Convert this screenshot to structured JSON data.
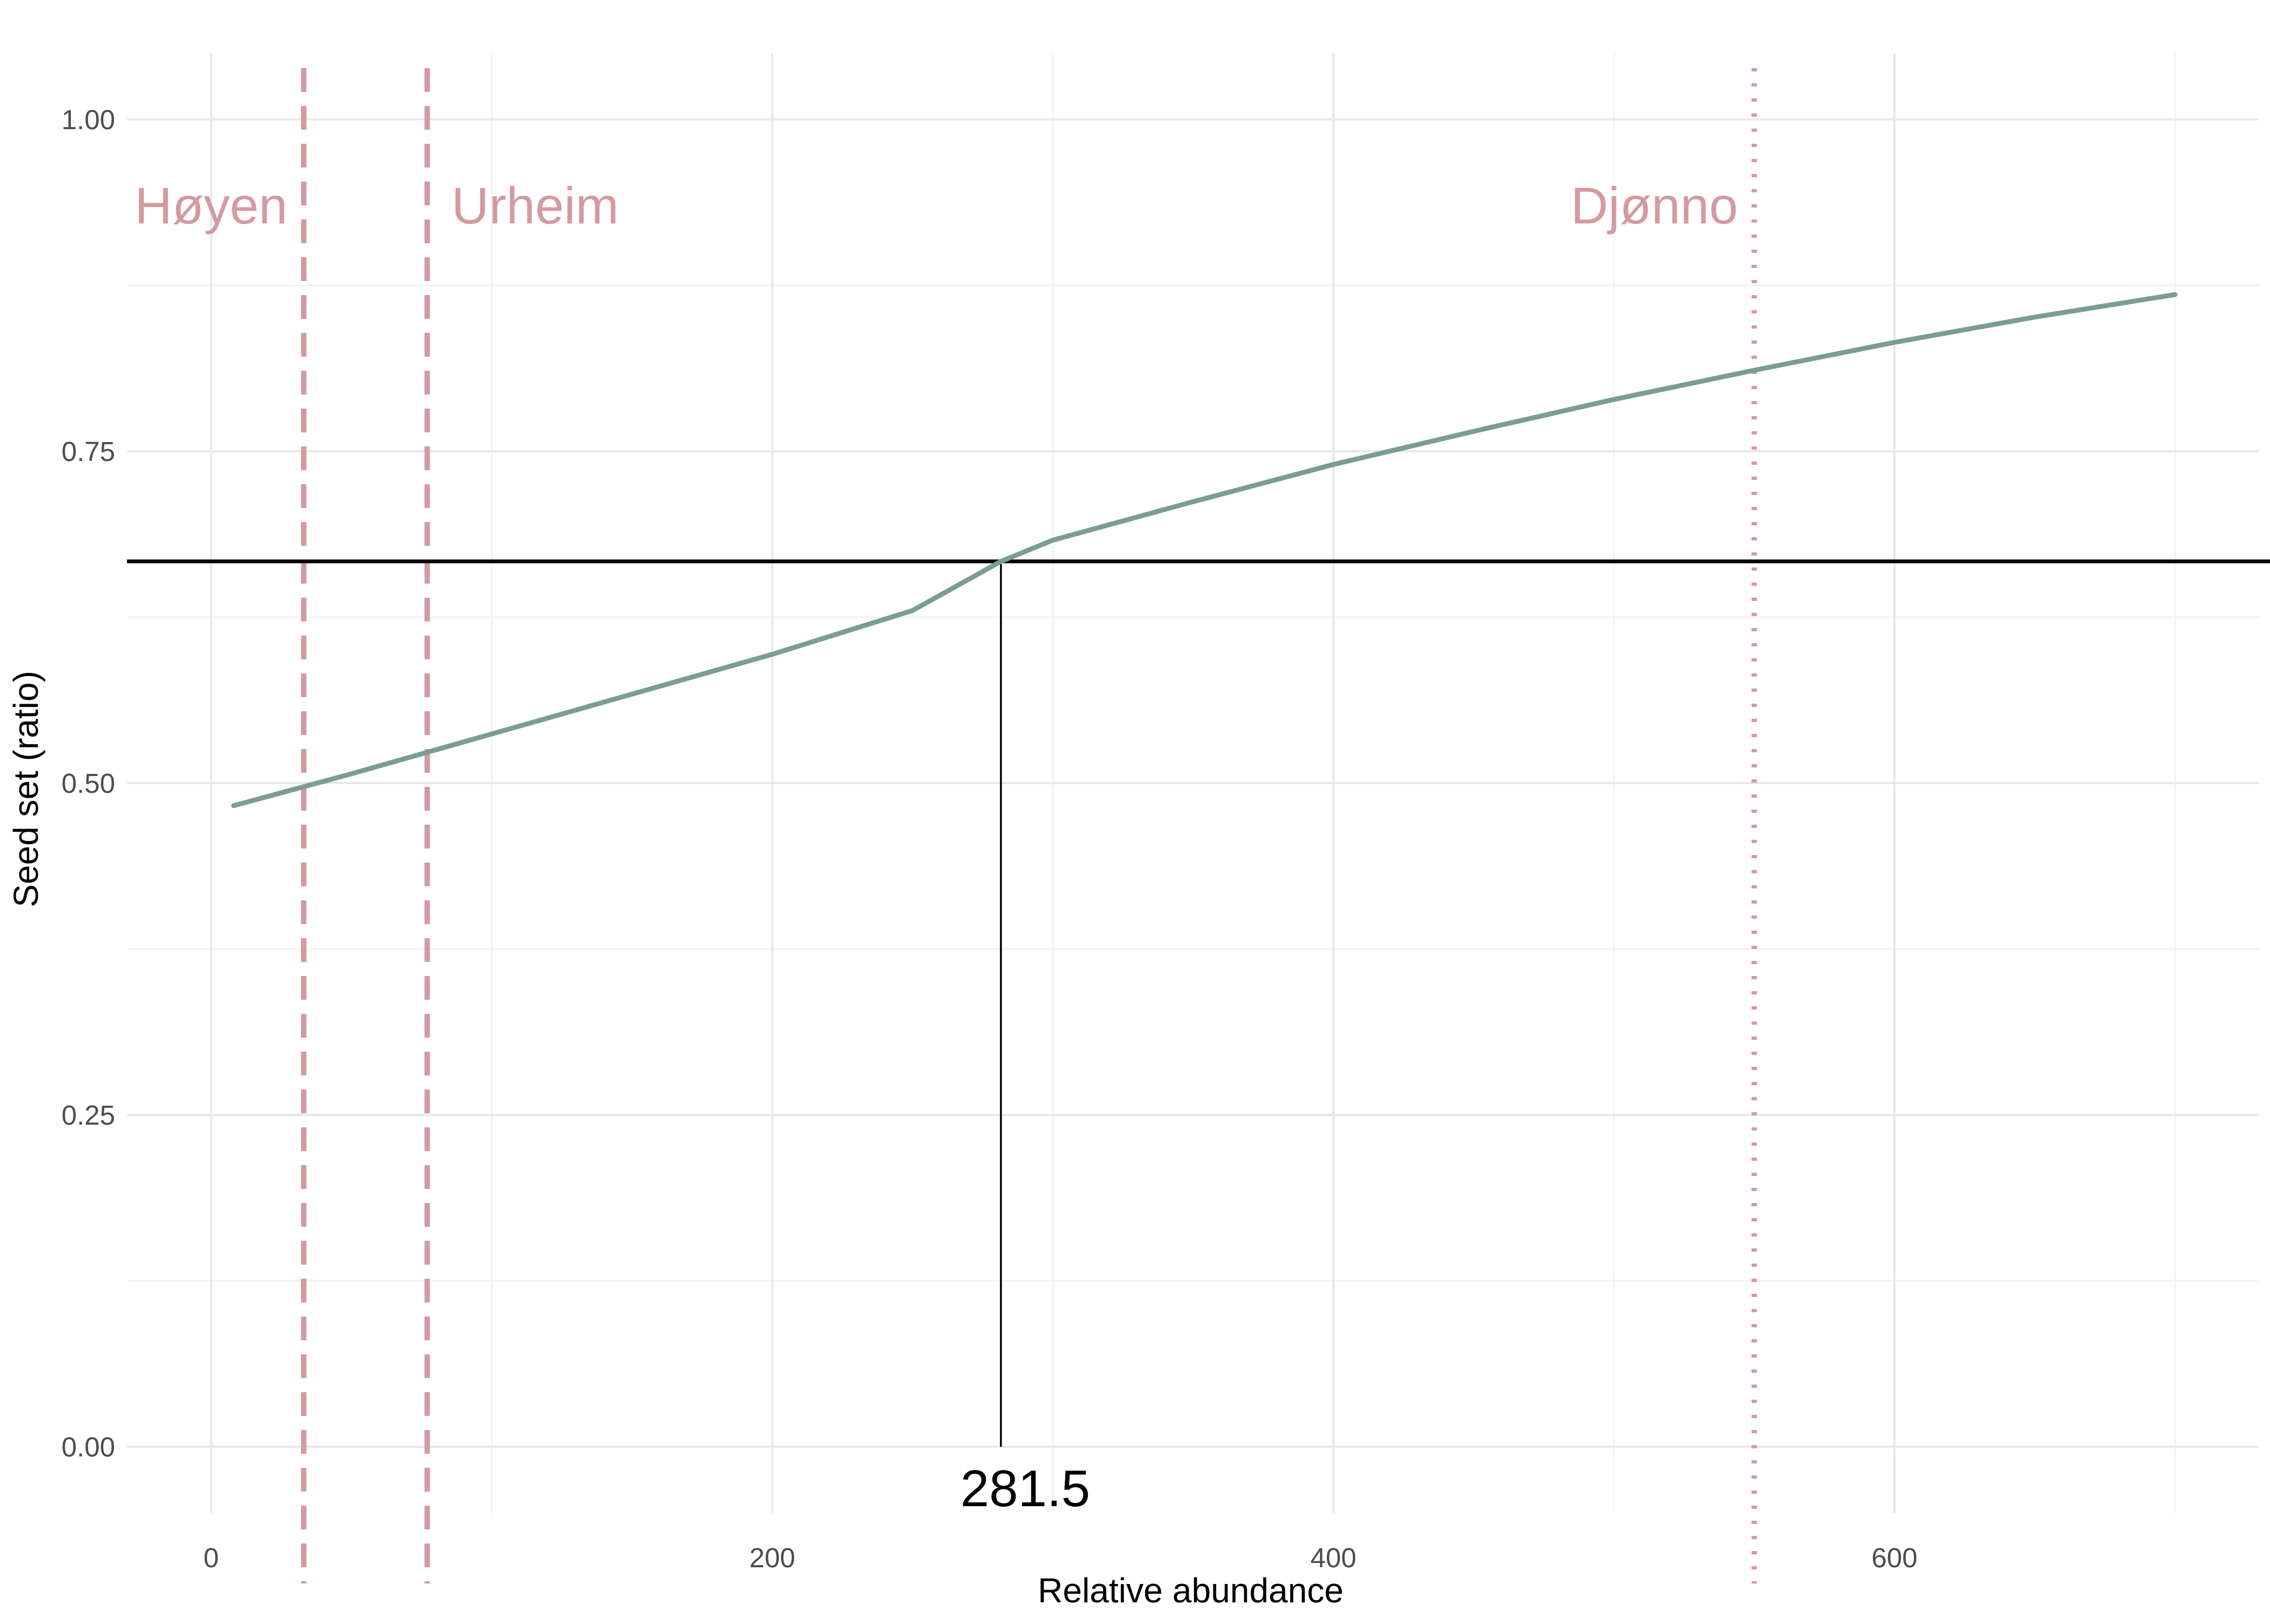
{
  "chart_data": {
    "type": "line",
    "xlabel": "Relative abundance",
    "ylabel": "Seed set (ratio)",
    "xlim": [
      -30,
      730
    ],
    "ylim": [
      -0.05,
      1.05
    ],
    "x_ticks": [
      0,
      200,
      400,
      600
    ],
    "x_tick_labels": [
      "0",
      "200",
      "400",
      "600"
    ],
    "y_ticks": [
      0.0,
      0.25,
      0.5,
      0.75,
      1.0
    ],
    "y_tick_labels": [
      "0.00",
      "0.25",
      "0.50",
      "0.75",
      "1.00"
    ],
    "x_minor_ticks": [
      100,
      300,
      500,
      700
    ],
    "y_minor_ticks": [
      0.125,
      0.375,
      0.625,
      0.875
    ],
    "grid": true,
    "series": [
      {
        "color": "#7a9e91",
        "x": [
          8,
          50,
          100,
          150,
          200,
          250,
          281.5,
          300,
          350,
          400,
          450,
          500,
          550,
          600,
          650,
          700
        ],
        "y": [
          0.483,
          0.507,
          0.537,
          0.567,
          0.597,
          0.63,
          0.667,
          0.683,
          0.712,
          0.74,
          0.765,
          0.789,
          0.811,
          0.832,
          0.851,
          0.868
        ]
      }
    ],
    "threshold_line": {
      "y": 0.667,
      "color": "#000000"
    },
    "threshold_marker": {
      "x": 281.5,
      "label": "281.5",
      "color": "#000000"
    },
    "site_lines": [
      {
        "name": "Høyen",
        "x": 33,
        "style": "dashed",
        "color": "#d49aa0",
        "label_side": "left"
      },
      {
        "name": "Urheim",
        "x": 77,
        "style": "dashed",
        "color": "#d49aa0",
        "label_side": "right"
      },
      {
        "name": "Djønno",
        "x": 550,
        "style": "dotted",
        "color": "#d49aa0",
        "label_side": "left"
      }
    ],
    "site_label_y": 0.935,
    "legend": "none"
  }
}
